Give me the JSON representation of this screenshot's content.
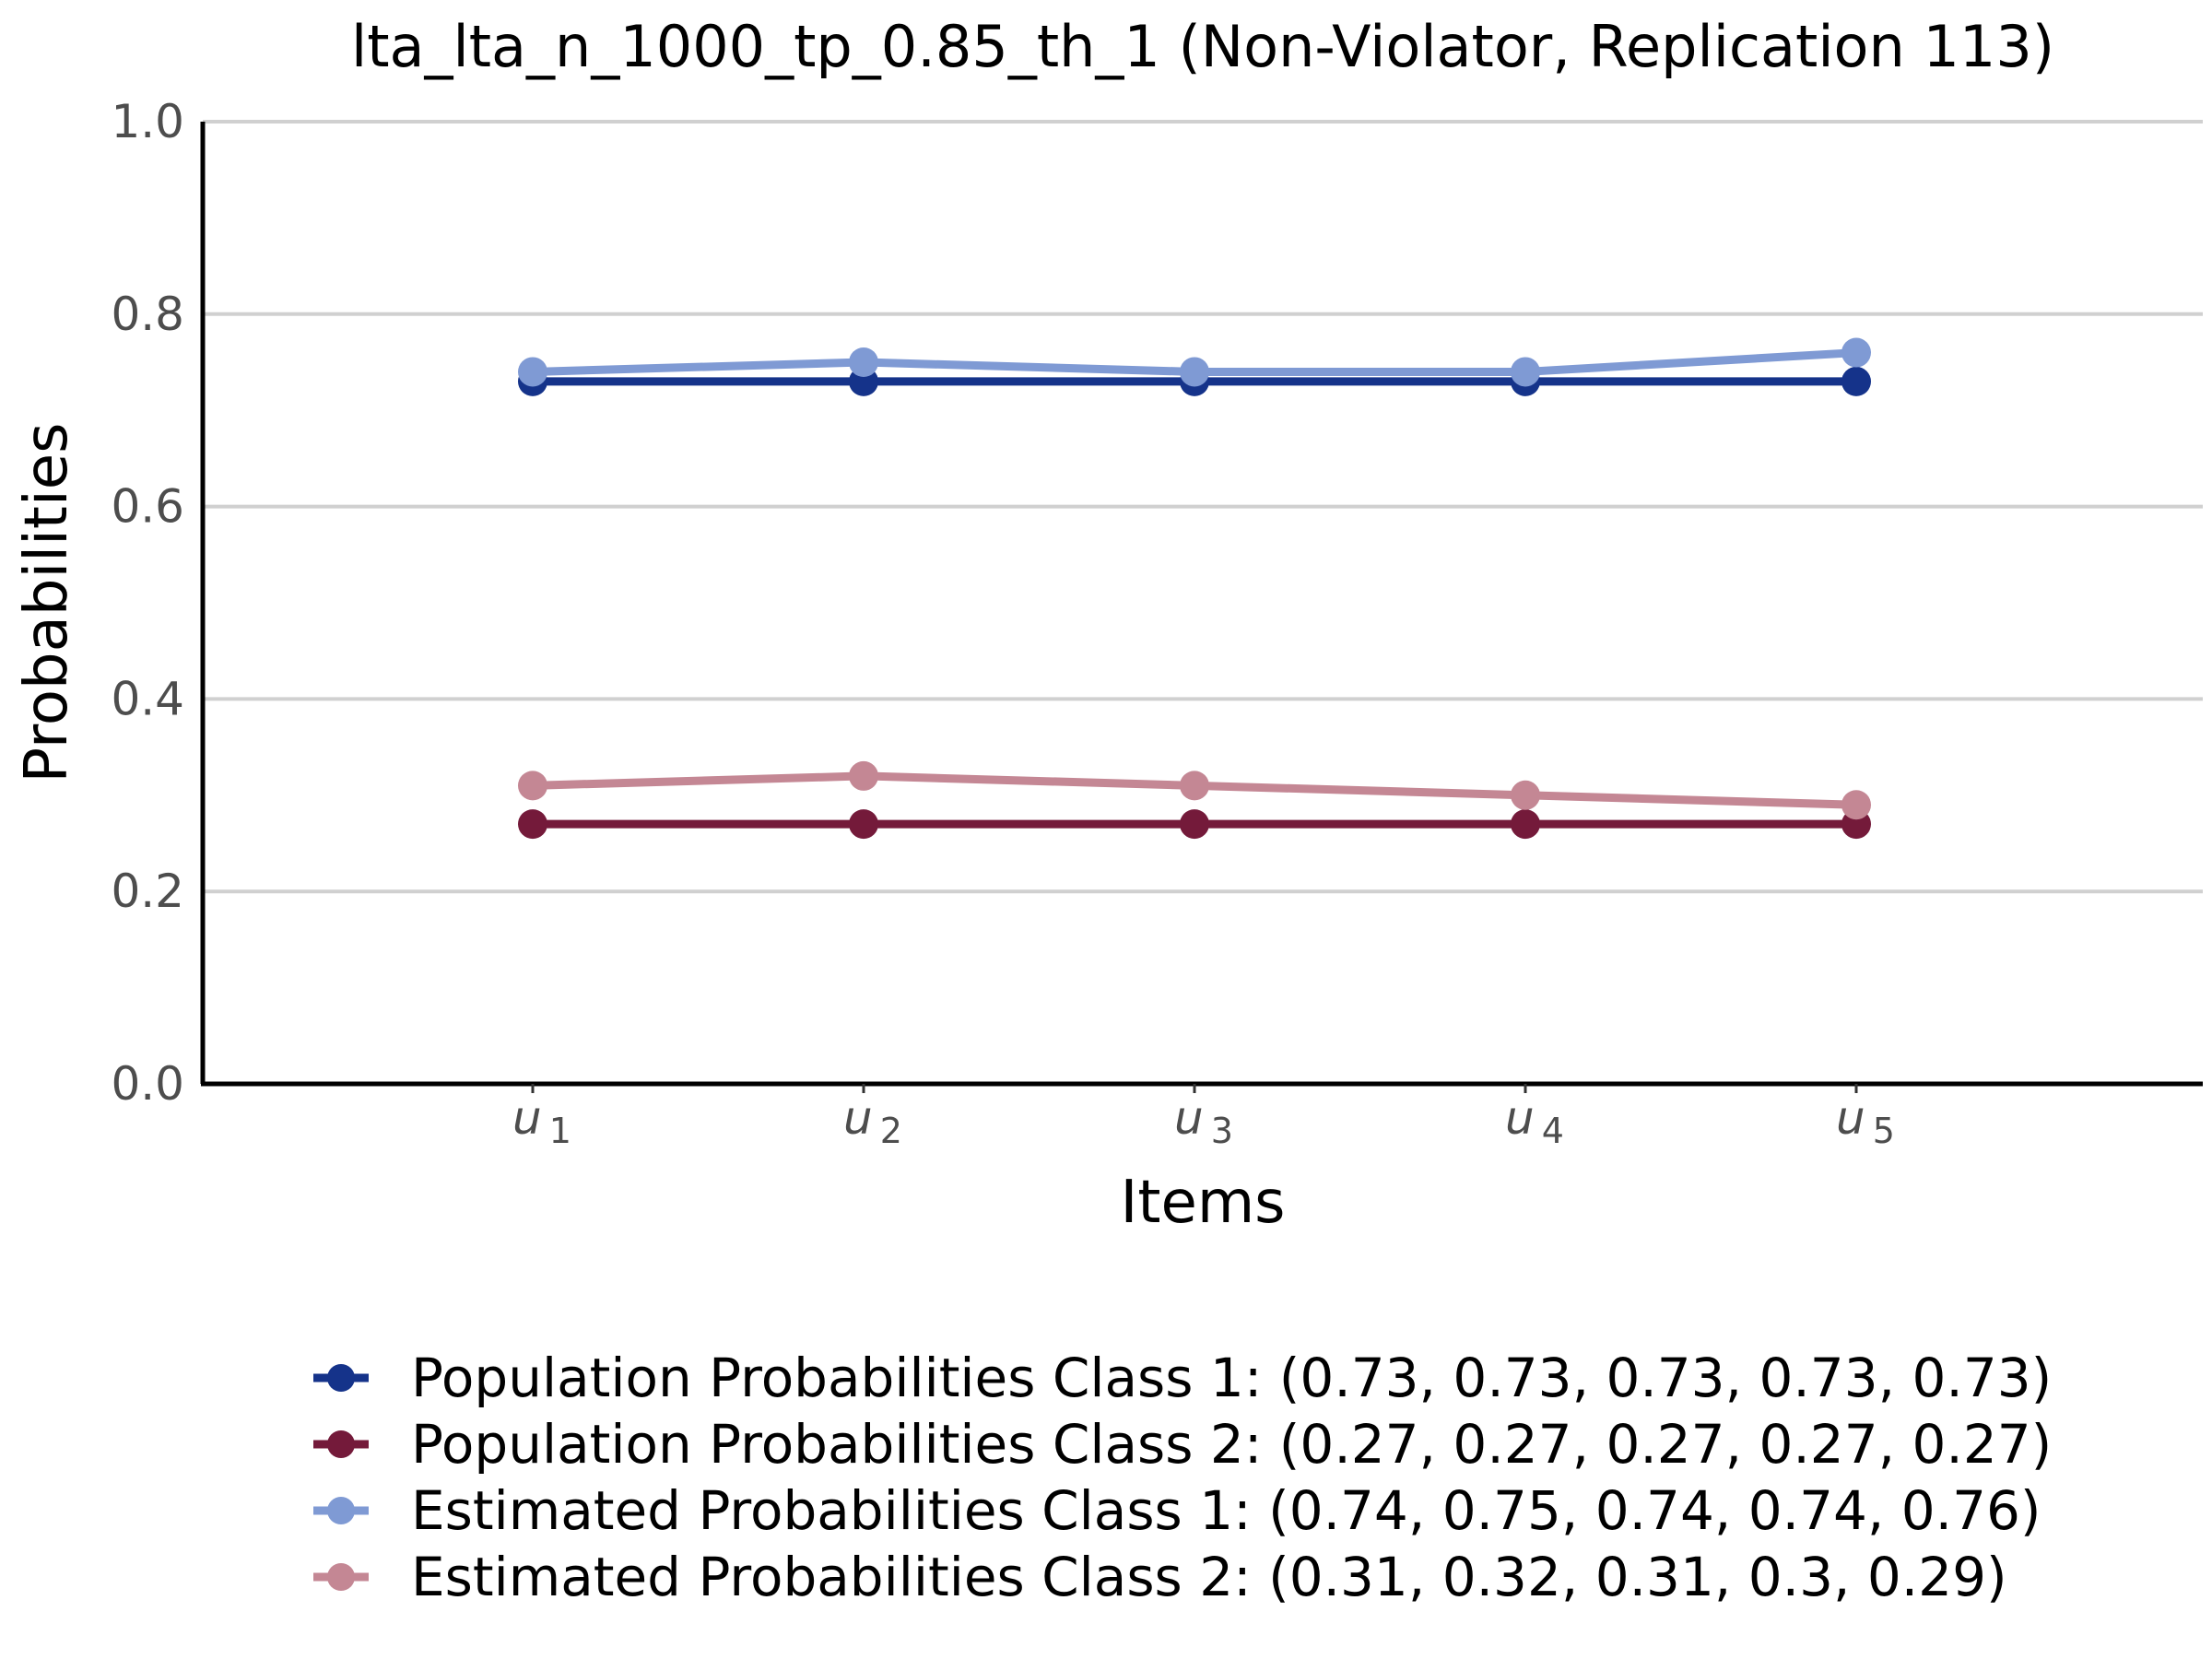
{
  "chart_data": {
    "type": "line",
    "title": "lta_lta_n_1000_tp_0.85_th_1 (Non-Violator, Replication 113)",
    "xlabel": "Items",
    "ylabel": "Probabilities",
    "ylim": [
      0,
      1
    ],
    "y_ticks": [
      "0.0",
      "0.2",
      "0.4",
      "0.6",
      "0.8",
      "1.0"
    ],
    "y_tick_values": [
      0,
      0.2,
      0.4,
      0.6,
      0.8,
      1.0
    ],
    "categories": [
      {
        "base": "u",
        "sub": "1"
      },
      {
        "base": "u",
        "sub": "2"
      },
      {
        "base": "u",
        "sub": "3"
      },
      {
        "base": "u",
        "sub": "4"
      },
      {
        "base": "u",
        "sub": "5"
      }
    ],
    "grid": "horizontal",
    "legend_position": "bottom",
    "series": [
      {
        "name": "Population Probabilities Class 1: (0.73, 0.73, 0.73, 0.73, 0.73)",
        "color": "#15338a",
        "values": [
          0.73,
          0.73,
          0.73,
          0.73,
          0.73
        ]
      },
      {
        "name": "Population Probabilities Class 2: (0.27, 0.27, 0.27, 0.27, 0.27)",
        "color": "#741a3a",
        "values": [
          0.27,
          0.27,
          0.27,
          0.27,
          0.27
        ]
      },
      {
        "name": "Estimated Probabilities Class 1: (0.74, 0.75, 0.74, 0.74, 0.76)",
        "color": "#7f9ad4",
        "values": [
          0.74,
          0.75,
          0.74,
          0.74,
          0.76
        ]
      },
      {
        "name": "Estimated Probabilities Class 2: (0.31, 0.32, 0.31, 0.3, 0.29)",
        "color": "#c48794",
        "values": [
          0.31,
          0.32,
          0.31,
          0.3,
          0.29
        ]
      }
    ]
  }
}
